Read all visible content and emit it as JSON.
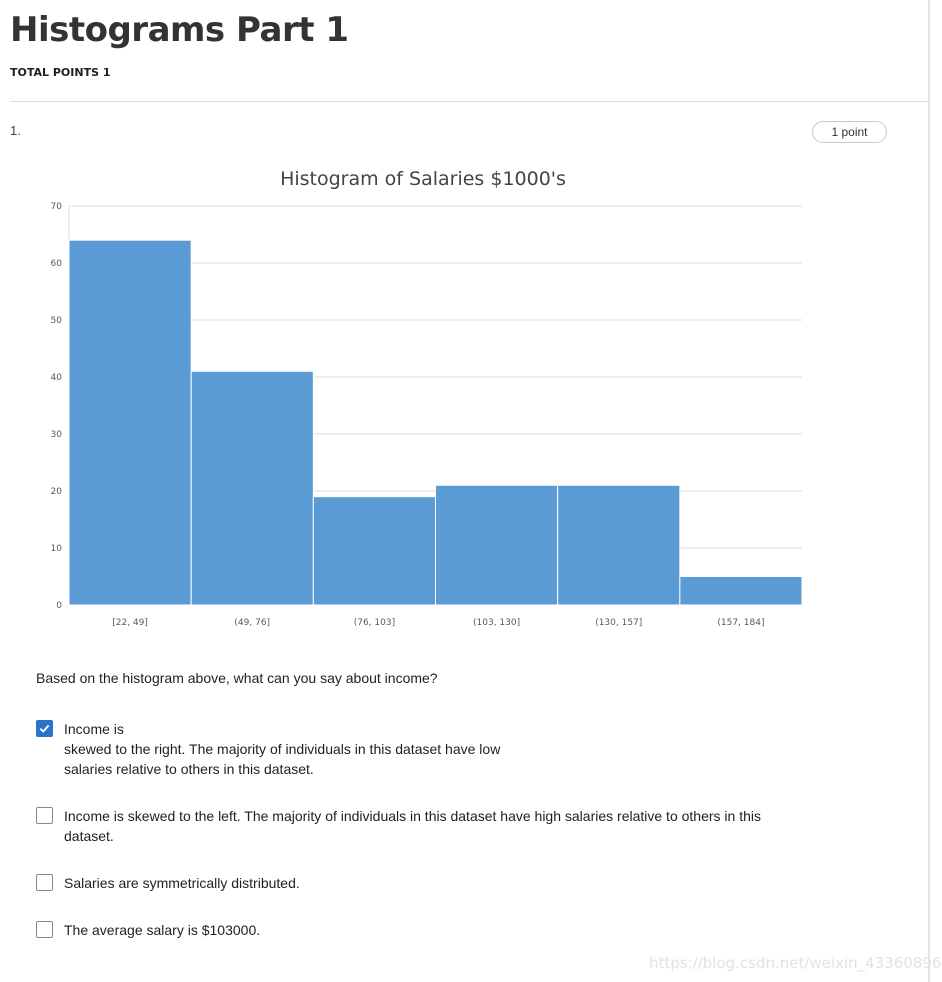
{
  "header": {
    "title": "Histograms Part 1",
    "total_points": "TOTAL POINTS 1"
  },
  "question": {
    "number": "1.",
    "points": "1 point",
    "prompt": "Based on the histogram above, what can you say about income?",
    "options": [
      {
        "lines": [
          "Income is",
          "skewed to the right. The majority of individuals in this dataset have low",
          "salaries relative to others in this dataset."
        ],
        "checked": true
      },
      {
        "lines": [
          "Income is skewed to the left. The majority of individuals in this dataset have high salaries relative to others in this",
          "dataset."
        ],
        "checked": false
      },
      {
        "lines": [
          "Salaries are symmetrically distributed."
        ],
        "checked": false
      },
      {
        "lines": [
          "The average salary is $103000."
        ],
        "checked": false
      }
    ]
  },
  "chart_data": {
    "type": "bar",
    "title": "Histogram of Salaries $1000's",
    "categories": [
      "[22, 49]",
      "(49, 76]",
      "(76, 103]",
      "(103, 130]",
      "(130, 157]",
      "(157, 184]"
    ],
    "values": [
      64,
      41,
      19,
      21,
      21,
      5
    ],
    "ylim": [
      0,
      70
    ],
    "yticks": [
      0,
      10,
      20,
      30,
      40,
      50,
      60,
      70
    ],
    "grid": true,
    "bar_color": "#5b9bd5"
  },
  "colors": {
    "accent": "#2a73cc"
  },
  "watermark": "https://blog.csdn.net/weixin_43360896"
}
